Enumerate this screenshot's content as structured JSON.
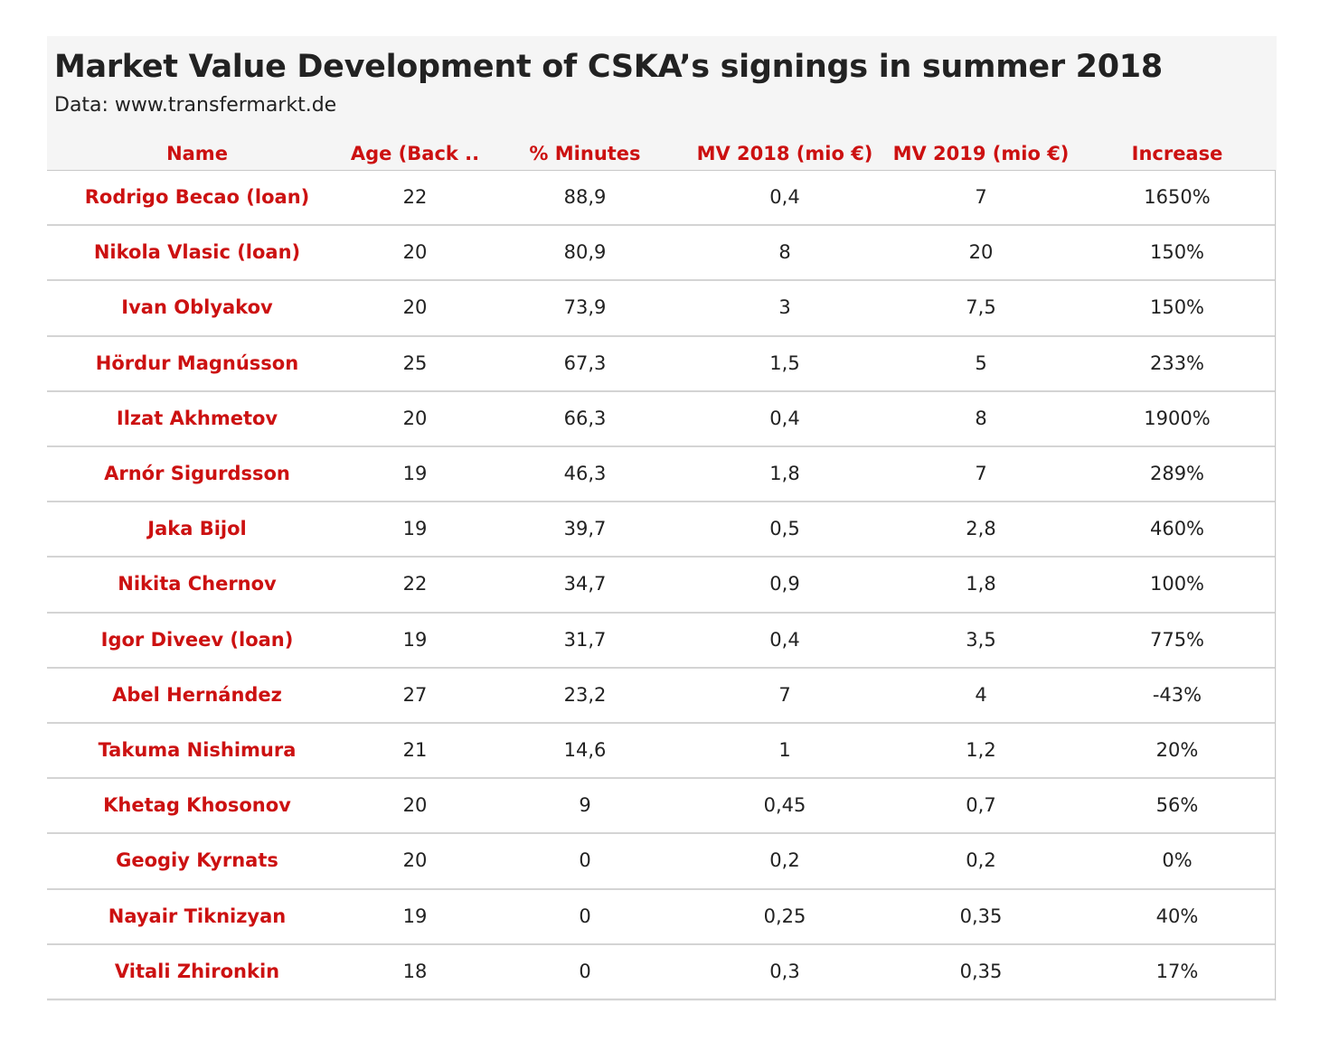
{
  "title": "Market Value Development of CSKA’s signings in summer 2018",
  "subtitle": "Data: www.transfermarkt.de",
  "chart_data": {
    "type": "table",
    "columns": [
      "Name",
      "Age (Back ..",
      "% Minutes",
      "MV 2018 (mio €)",
      "MV 2019 (mio €)",
      "Increase"
    ],
    "rows": [
      [
        "Rodrigo Becao (loan)",
        "22",
        "88,9",
        "0,4",
        "7",
        "1650%"
      ],
      [
        "Nikola Vlasic (loan)",
        "20",
        "80,9",
        "8",
        "20",
        "150%"
      ],
      [
        "Ivan Oblyakov",
        "20",
        "73,9",
        "3",
        "7,5",
        "150%"
      ],
      [
        "Hördur Magnússon",
        "25",
        "67,3",
        "1,5",
        "5",
        "233%"
      ],
      [
        "Ilzat Akhmetov",
        "20",
        "66,3",
        "0,4",
        "8",
        "1900%"
      ],
      [
        "Arnór Sigurdsson",
        "19",
        "46,3",
        "1,8",
        "7",
        "289%"
      ],
      [
        "Jaka Bijol",
        "19",
        "39,7",
        "0,5",
        "2,8",
        "460%"
      ],
      [
        "Nikita Chernov",
        "22",
        "34,7",
        "0,9",
        "1,8",
        "100%"
      ],
      [
        "Igor Diveev (loan)",
        "19",
        "31,7",
        "0,4",
        "3,5",
        "775%"
      ],
      [
        "Abel Hernández",
        "27",
        "23,2",
        "7",
        "4",
        "-43%"
      ],
      [
        "Takuma Nishimura",
        "21",
        "14,6",
        "1",
        "1,2",
        "20%"
      ],
      [
        "Khetag Khosonov",
        "20",
        "9",
        "0,45",
        "0,7",
        "56%"
      ],
      [
        "Geogiy Kyrnats",
        "20",
        "0",
        "0,2",
        "0,2",
        "0%"
      ],
      [
        "Nayair Tiknizyan",
        "19",
        "0",
        "0,25",
        "0,35",
        "40%"
      ],
      [
        "Vitali Zhironkin",
        "18",
        "0",
        "0,3",
        "0,35",
        "17%"
      ]
    ]
  },
  "colors": {
    "accent": "#cc1111",
    "text": "#222222",
    "panel_background": "#f5f5f5",
    "row_border": "#d4d4d4"
  }
}
